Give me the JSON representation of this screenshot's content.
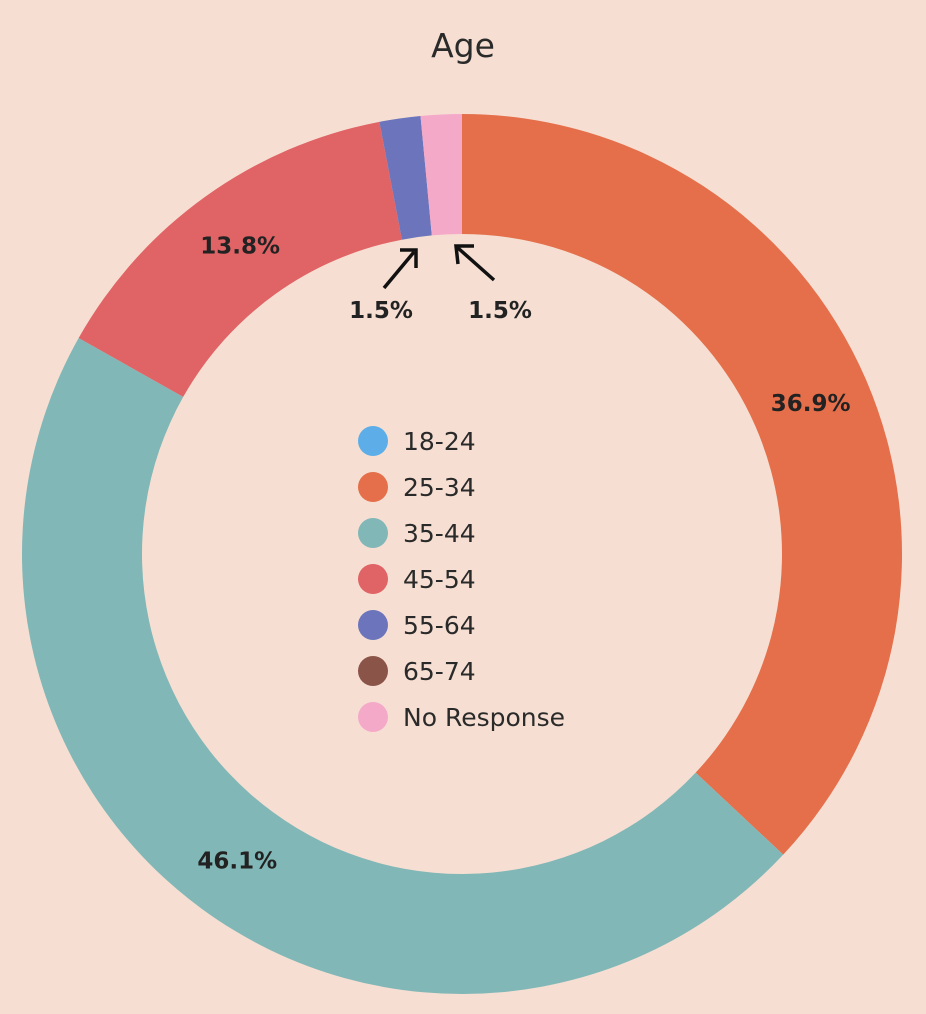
{
  "chart_data": {
    "type": "pie",
    "variant": "donut",
    "title": "Age",
    "categories": [
      "18-24",
      "25-34",
      "35-44",
      "45-54",
      "55-64",
      "65-74",
      "No Response"
    ],
    "values": [
      0,
      36.9,
      46.1,
      13.8,
      1.5,
      0,
      1.5
    ],
    "labels": [
      "",
      "36.9%",
      "46.1%",
      "13.8%",
      "1.5%",
      "",
      "1.5%"
    ],
    "colors": [
      "#5DAEE8",
      "#E46F4A",
      "#82B7B7",
      "#E06365",
      "#6C75BC",
      "#8B5449",
      "#F5A9C9"
    ],
    "legend_position": "center"
  }
}
